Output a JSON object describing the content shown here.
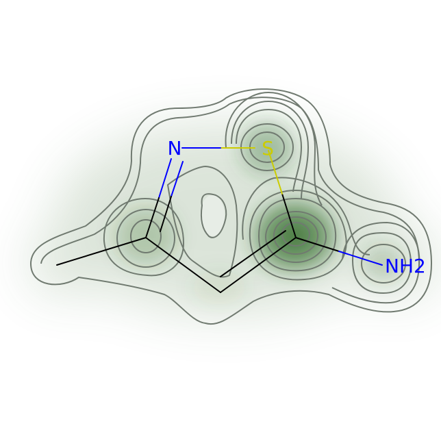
{
  "molecule": {
    "atoms": [
      {
        "id": "n1",
        "label": "N",
        "color": "#0000ff"
      },
      {
        "id": "s1",
        "label": "S",
        "color": "#cccc00"
      },
      {
        "id": "nh2",
        "label": "NH2",
        "color": "#0000ff"
      }
    ],
    "colors": {
      "bond": "#000000",
      "nitrogen": "#0000ff",
      "sulfur": "#cccc00",
      "contour": "#707a70",
      "density": "#2f6b24"
    }
  }
}
